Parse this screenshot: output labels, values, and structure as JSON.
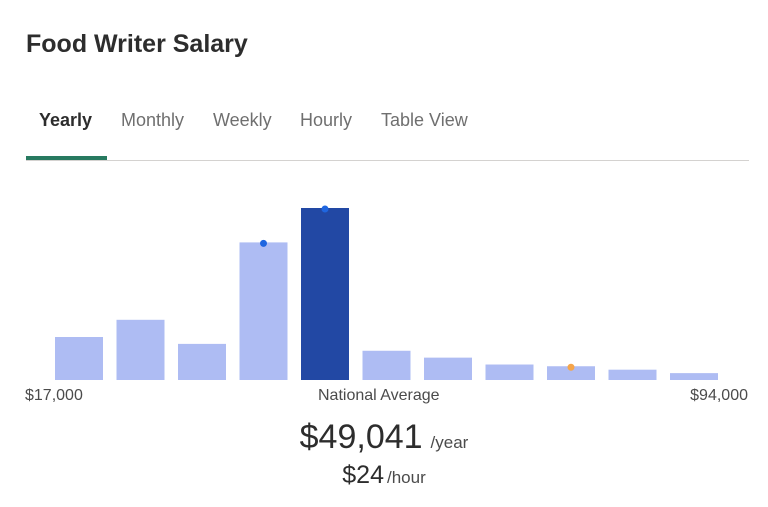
{
  "title": "Food Writer Salary",
  "tabs": [
    {
      "label": "Yearly",
      "active": true
    },
    {
      "label": "Monthly",
      "active": false
    },
    {
      "label": "Weekly",
      "active": false
    },
    {
      "label": "Hourly",
      "active": false
    },
    {
      "label": "Table View",
      "active": false
    }
  ],
  "colors": {
    "tab_accent": "#277a60",
    "bar_default": "#aebcf3",
    "bar_highlight": "#2248a4",
    "marker_blue": "#1f66e0",
    "marker_orange": "#f5a54a"
  },
  "chart_data": {
    "type": "bar",
    "x_range": [
      17000,
      94000
    ],
    "relative_frequencies": [
      25,
      35,
      21,
      80,
      100,
      17,
      13,
      9,
      8,
      6,
      4
    ],
    "highlighted_bin": 4,
    "markers": [
      {
        "bin": 3,
        "color": "blue"
      },
      {
        "bin": 4,
        "color": "blue"
      },
      {
        "bin": 8,
        "color": "orange"
      }
    ]
  },
  "axis": {
    "min_label": "$17,000",
    "mid_label": "National Average",
    "max_label": "$94,000"
  },
  "average": {
    "amount": "$49,041",
    "unit": "/year",
    "hourly_amount": "$24",
    "hourly_unit": "/hour"
  }
}
